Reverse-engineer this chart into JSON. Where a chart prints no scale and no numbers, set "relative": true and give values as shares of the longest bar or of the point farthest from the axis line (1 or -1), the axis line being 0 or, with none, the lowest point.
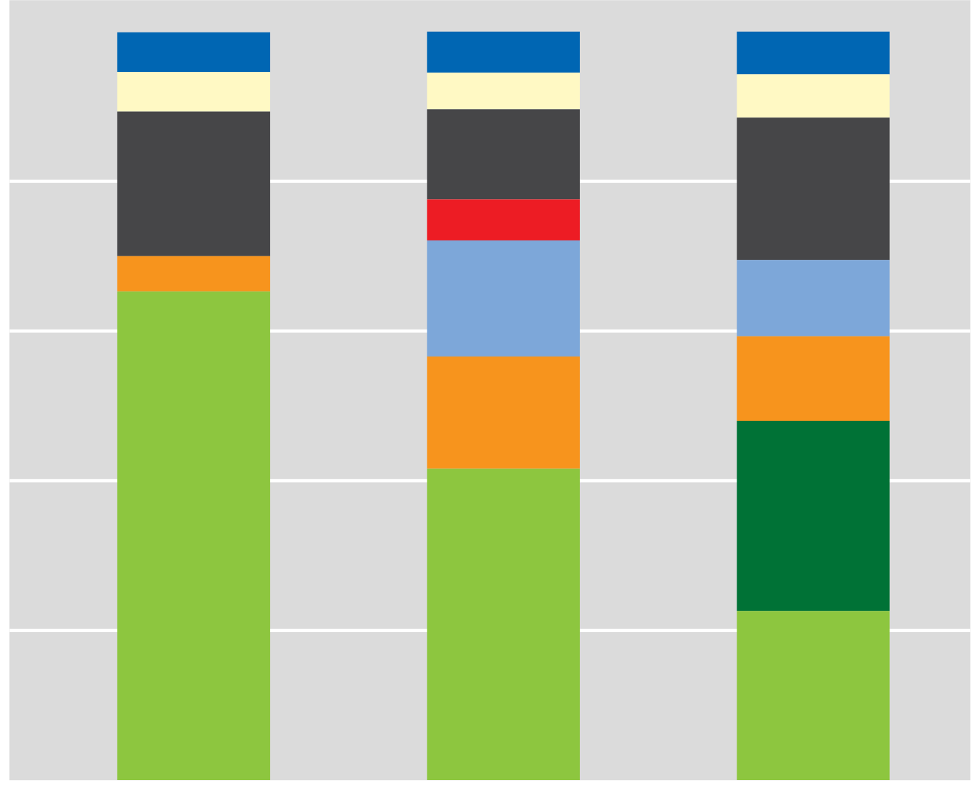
{
  "chart_data": {
    "type": "bar",
    "stacked": true,
    "relative": true,
    "grid": "y",
    "categories": [
      null,
      null,
      null
    ],
    "series": [
      {
        "color": "#8dc63f",
        "values": [
          0.653,
          0.416,
          0.226
        ]
      },
      {
        "color": "#007236",
        "values": [
          null,
          null,
          0.254
        ]
      },
      {
        "color": "#f7941d",
        "values": [
          0.047,
          0.15,
          0.113
        ]
      },
      {
        "color": "#7da7d9",
        "values": [
          null,
          0.155,
          0.102
        ]
      },
      {
        "color": "#ed1c24",
        "values": [
          null,
          0.055,
          null
        ]
      },
      {
        "color": "#464648",
        "values": [
          0.193,
          0.12,
          0.19
        ]
      },
      {
        "color": "#fff9c4",
        "values": [
          0.053,
          0.049,
          0.058
        ]
      },
      {
        "color": "#0066b3",
        "values": [
          0.053,
          0.055,
          0.057
        ]
      }
    ]
  }
}
